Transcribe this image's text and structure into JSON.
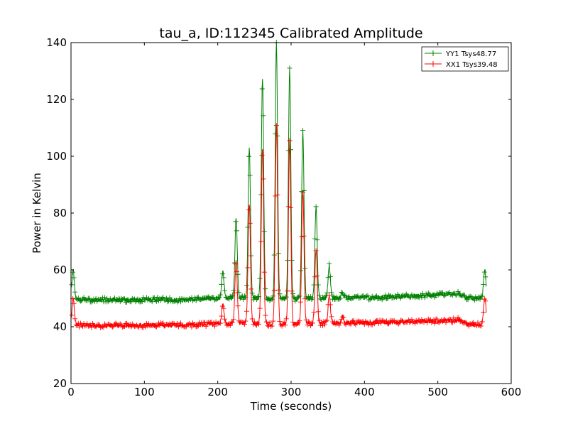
{
  "chart_data": {
    "type": "line",
    "title": "tau_a, ID:112345 Calibrated Amplitude",
    "xlabel": "Time (seconds)",
    "ylabel": "Power in Kelvin",
    "xlim": [
      0,
      600
    ],
    "ylim": [
      20,
      140
    ],
    "xticks": [
      0,
      100,
      200,
      300,
      400,
      500,
      600
    ],
    "yticks": [
      20,
      40,
      60,
      80,
      100,
      120,
      140
    ],
    "grid": false,
    "legend_position": "top-right",
    "series": [
      {
        "name": "YY1 Tsys48.77",
        "color": "#008000",
        "marker": "+",
        "baseline": [
          [
            0,
            49.5
          ],
          [
            20,
            49.6
          ],
          [
            40,
            49.4
          ],
          [
            60,
            49.6
          ],
          [
            80,
            49.3
          ],
          [
            100,
            49.5
          ],
          [
            120,
            49.7
          ],
          [
            140,
            49.4
          ],
          [
            160,
            49.6
          ],
          [
            180,
            49.8
          ],
          [
            200,
            49.9
          ],
          [
            220,
            50.0
          ],
          [
            240,
            50.2
          ],
          [
            260,
            50.1
          ],
          [
            280,
            49.6
          ],
          [
            300,
            49.7
          ],
          [
            320,
            49.8
          ],
          [
            340,
            50.0
          ],
          [
            360,
            50.2
          ],
          [
            380,
            50.3
          ],
          [
            400,
            50.2
          ],
          [
            420,
            50.3
          ],
          [
            440,
            50.5
          ],
          [
            460,
            50.8
          ],
          [
            480,
            51.0
          ],
          [
            500,
            51.2
          ],
          [
            520,
            51.8
          ],
          [
            530,
            51.6
          ],
          [
            540,
            50.0
          ],
          [
            560,
            50.0
          ]
        ],
        "peaks": [
          [
            3,
            59.8
          ],
          [
            207,
            59.5
          ],
          [
            225,
            78
          ],
          [
            243,
            103
          ],
          [
            261,
            128
          ],
          [
            280,
            139.5
          ],
          [
            298,
            130.5
          ],
          [
            316,
            109
          ],
          [
            334,
            82
          ],
          [
            352,
            61.5
          ],
          [
            370,
            52.2
          ],
          [
            564,
            60
          ]
        ],
        "x_range": [
          1,
          566
        ]
      },
      {
        "name": "XX1 Tsys39.48",
        "color": "#ff0000",
        "marker": "+",
        "baseline": [
          [
            0,
            40.5
          ],
          [
            20,
            40.6
          ],
          [
            40,
            40.3
          ],
          [
            60,
            40.5
          ],
          [
            80,
            40.4
          ],
          [
            100,
            40.5
          ],
          [
            120,
            40.6
          ],
          [
            140,
            40.5
          ],
          [
            160,
            40.6
          ],
          [
            180,
            40.8
          ],
          [
            200,
            41.0
          ],
          [
            220,
            41.1
          ],
          [
            240,
            41.2
          ],
          [
            260,
            41.1
          ],
          [
            280,
            40.8
          ],
          [
            300,
            40.9
          ],
          [
            320,
            41.0
          ],
          [
            340,
            41.1
          ],
          [
            360,
            41.2
          ],
          [
            380,
            41.4
          ],
          [
            400,
            41.3
          ],
          [
            420,
            41.5
          ],
          [
            440,
            41.6
          ],
          [
            460,
            41.8
          ],
          [
            480,
            41.9
          ],
          [
            500,
            42.0
          ],
          [
            520,
            42.3
          ],
          [
            530,
            42.6
          ],
          [
            540,
            40.8
          ],
          [
            560,
            40.8
          ]
        ],
        "peaks": [
          [
            3,
            49.5
          ],
          [
            207,
            48
          ],
          [
            225,
            63
          ],
          [
            243,
            83.5
          ],
          [
            261,
            102.5
          ],
          [
            280,
            111
          ],
          [
            298,
            105
          ],
          [
            316,
            88
          ],
          [
            334,
            67.5
          ],
          [
            352,
            51
          ],
          [
            370,
            43.5
          ],
          [
            564,
            50.2
          ]
        ],
        "x_range": [
          1,
          566
        ]
      }
    ]
  }
}
